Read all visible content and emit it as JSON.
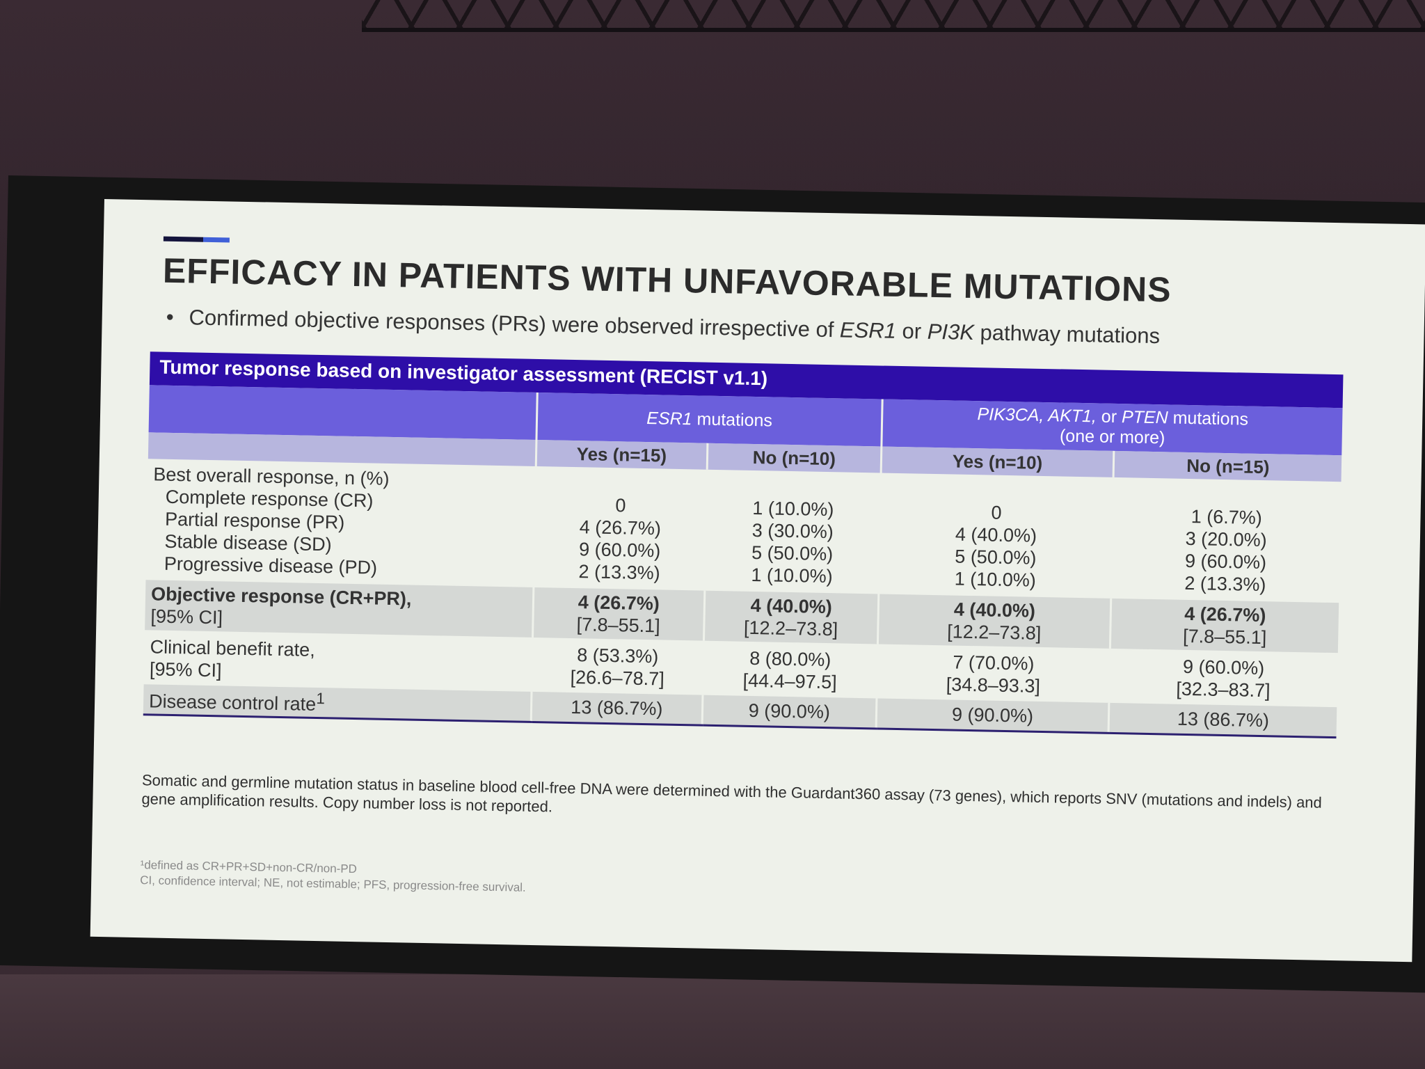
{
  "slide": {
    "title": "EFFICACY IN PATIENTS WITH UNFAVORABLE MUTATIONS",
    "bullet": {
      "text_1": "Confirmed objective responses (PRs) were observed irrespective of ",
      "gene_1": "ESR1",
      "text_2": " or ",
      "gene_2": "PI3K",
      "text_3": " pathway mutations"
    },
    "table": {
      "title": "Tumor response based on investigator assessment (RECIST v1.1)",
      "group_headers": {
        "esr1_italic": "ESR1",
        "esr1_rest": " mutations",
        "pik_italic": "PIK3CA, AKT1,",
        "pik_or": " or ",
        "pik_italic2": "PTEN",
        "pik_rest": " mutations",
        "pik_line2": "(one or more)"
      },
      "columns": [
        "Yes (n=15)",
        "No (n=10)",
        "Yes (n=10)",
        "No (n=15)"
      ],
      "bor": {
        "label": "Best overall response, n (%)",
        "sub_labels": [
          "Complete response (CR)",
          "Partial response (PR)",
          "Stable disease (SD)",
          "Progressive disease (PD)"
        ],
        "values": [
          [
            "0",
            "4 (26.7%)",
            "9 (60.0%)",
            "2 (13.3%)"
          ],
          [
            "1 (10.0%)",
            "3 (30.0%)",
            "5 (50.0%)",
            "1 (10.0%)"
          ],
          [
            "0",
            "4 (40.0%)",
            "5 (50.0%)",
            "1 (10.0%)"
          ],
          [
            "1 (6.7%)",
            "3 (20.0%)",
            "9 (60.0%)",
            "2 (13.3%)"
          ]
        ]
      },
      "orr": {
        "label_1": "Objective response (CR+PR),",
        "label_2": "[95% CI]",
        "values": [
          "4 (26.7%)",
          "4 (40.0%)",
          "4 (40.0%)",
          "4 (26.7%)"
        ],
        "ci": [
          "[7.8–55.1]",
          "[12.2–73.8]",
          "[12.2–73.8]",
          "[7.8–55.1]"
        ]
      },
      "cbr": {
        "label_1": "Clinical benefit rate,",
        "label_2": "[95% CI]",
        "values": [
          "8 (53.3%)",
          "8 (80.0%)",
          "7 (70.0%)",
          "9 (60.0%)"
        ],
        "ci": [
          "[26.6–78.7]",
          "[44.4–97.5]",
          "[34.8–93.3]",
          "[32.3–83.7]"
        ]
      },
      "dcr": {
        "label": "Disease control rate",
        "sup": "1",
        "values": [
          "13 (86.7%)",
          "9 (90.0%)",
          "9 (90.0%)",
          "13 (86.7%)"
        ]
      }
    },
    "note": "Somatic and germline mutation status in baseline blood cell-free DNA were determined with the Guardant360 assay (73 genes), which reports SNV (mutations and indels) and gene amplification results. Copy number loss is not reported.",
    "footnotes": [
      "¹defined as CR+PR+SD+non-CR/non-PD",
      "CI, confidence interval; NE, not estimable; PFS, progression-free survival."
    ]
  }
}
